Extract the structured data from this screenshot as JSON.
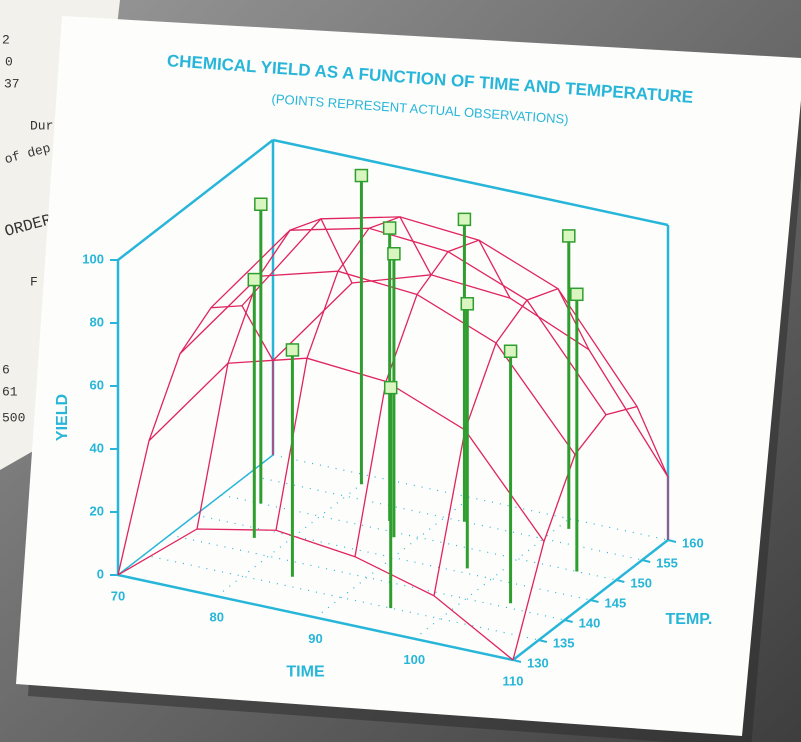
{
  "chart_data": {
    "type": "surface3d",
    "title": "CHEMICAL YIELD AS A FUNCTION OF TIME AND TEMPERATURE",
    "subtitle": "(POINTS REPRESENT ACTUAL OBSERVATIONS)",
    "x_label": "TIME",
    "y_label": "YIELD",
    "z_label": "TEMP.",
    "xlim": [
      70,
      110
    ],
    "xticks": [
      70,
      80,
      90,
      100,
      110
    ],
    "zlim": [
      130,
      160
    ],
    "zticks": [
      130,
      135,
      140,
      145,
      150,
      155,
      160
    ],
    "ylim": [
      0,
      100
    ],
    "yticks": [
      0,
      20,
      40,
      60,
      80,
      100
    ],
    "surface": {
      "color": "#e0245e",
      "time": [
        70,
        78,
        86,
        94,
        102,
        110
      ],
      "temp": [
        130,
        136,
        142,
        148,
        154,
        160
      ],
      "yield": [
        [
          0,
          35,
          55,
          62,
          55,
          30
        ],
        [
          20,
          65,
          85,
          92,
          88,
          60
        ],
        [
          25,
          72,
          92,
          98,
          94,
          68
        ],
        [
          22,
          70,
          90,
          96,
          92,
          66
        ],
        [
          15,
          60,
          80,
          86,
          82,
          55
        ],
        [
          0,
          30,
          50,
          55,
          50,
          20
        ]
      ]
    },
    "points": {
      "color": "#2e9e2e",
      "marker_color": "#d9f5c0",
      "time": [
        74,
        77,
        80,
        84,
        86,
        88,
        92,
        95,
        97,
        101,
        104,
        106
      ],
      "temp": [
        150,
        143,
        158,
        137,
        152,
        149,
        155,
        135,
        146,
        158,
        141,
        150
      ],
      "yield": [
        95,
        82,
        98,
        72,
        93,
        90,
        96,
        70,
        84,
        93,
        80,
        88
      ]
    },
    "axis_color": "#27b6d9"
  },
  "paper_fragments": [
    "2",
    "0",
    "37",
    "Dur",
    "of dep",
    "ORDER",
    "F",
    "6",
    "61",
    "500"
  ]
}
